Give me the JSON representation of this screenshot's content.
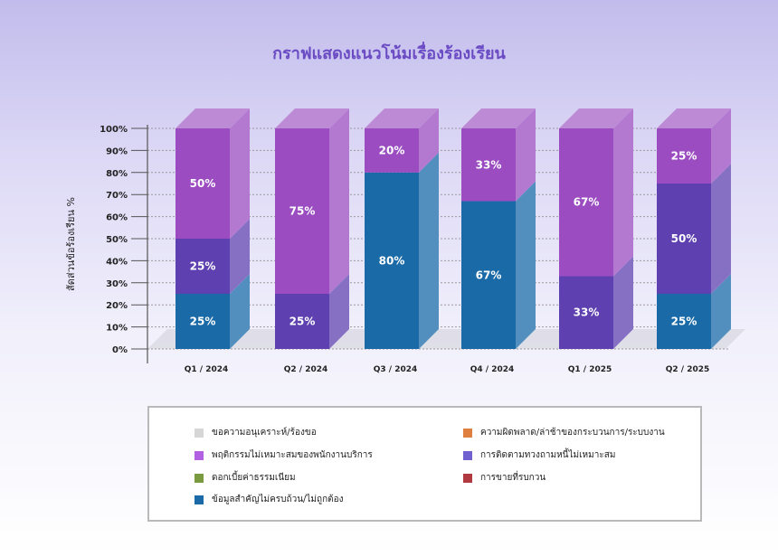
{
  "chart_data": {
    "type": "bar",
    "stacked": true,
    "three_d": true,
    "title": "กราฟแสดงแนวโน้มเรื่องร้องเรียน",
    "ylabel": "สัดส่วนข้อร้องเรียน %",
    "xlabel": "",
    "ylim": [
      0,
      100
    ],
    "yticks": [
      "0%",
      "10%",
      "20%",
      "30%",
      "40%",
      "50%",
      "60%",
      "70%",
      "80%",
      "90%",
      "100%"
    ],
    "grid": true,
    "legend_position": "bottom",
    "categories": [
      "Q1 / 2024",
      "Q2 / 2024",
      "Q3 / 2024",
      "Q4 / 2024",
      "Q1 / 2025",
      "Q2 / 2025"
    ],
    "series": [
      {
        "name": "ข้อมูลสำคัญไม่ครบถ้วน/ไม่ถูกต้อง",
        "color": "#1a6aa8",
        "values": [
          25,
          0,
          80,
          67,
          0,
          25
        ],
        "labels": [
          "25%",
          "",
          "80%",
          "67%",
          "",
          "25%"
        ]
      },
      {
        "name": "การติดตามทวงถามหนี้ไม่เหมาะสม",
        "color": "#5e40b0",
        "values": [
          25,
          25,
          0,
          0,
          33,
          50
        ],
        "labels": [
          "25%",
          "25%",
          "",
          "",
          "33%",
          "50%"
        ]
      },
      {
        "name": "พฤติกรรมไม่เหมาะสมของพนักงานบริการ",
        "color": "#9a4cc0",
        "values": [
          50,
          75,
          20,
          33,
          67,
          25
        ],
        "labels": [
          "50%",
          "75%",
          "20%",
          "33%",
          "67%",
          "25%"
        ]
      }
    ],
    "legend": [
      {
        "name": "ขอความอนุเคราะห์/ร้องขอ",
        "color": "#d6d6d6"
      },
      {
        "name": "ความผิดพลาด/ล่าช้าของกระบวนการ/ระบบงาน",
        "color": "#e08040"
      },
      {
        "name": "พฤติกรรมไม่เหมาะสมของพนักงานบริการ",
        "color": "#b060e0"
      },
      {
        "name": "การติดตามทวงถามหนี้ไม่เหมาะสม",
        "color": "#7060d0"
      },
      {
        "name": "ดอกเบี้ยค่าธรรมเนียม",
        "color": "#7a9a40"
      },
      {
        "name": "การขายที่รบกวน",
        "color": "#b03a40"
      },
      {
        "name": "ข้อมูลสำคัญไม่ครบถ้วน/ไม่ถูกต้อง",
        "color": "#1a6aa8"
      }
    ]
  }
}
